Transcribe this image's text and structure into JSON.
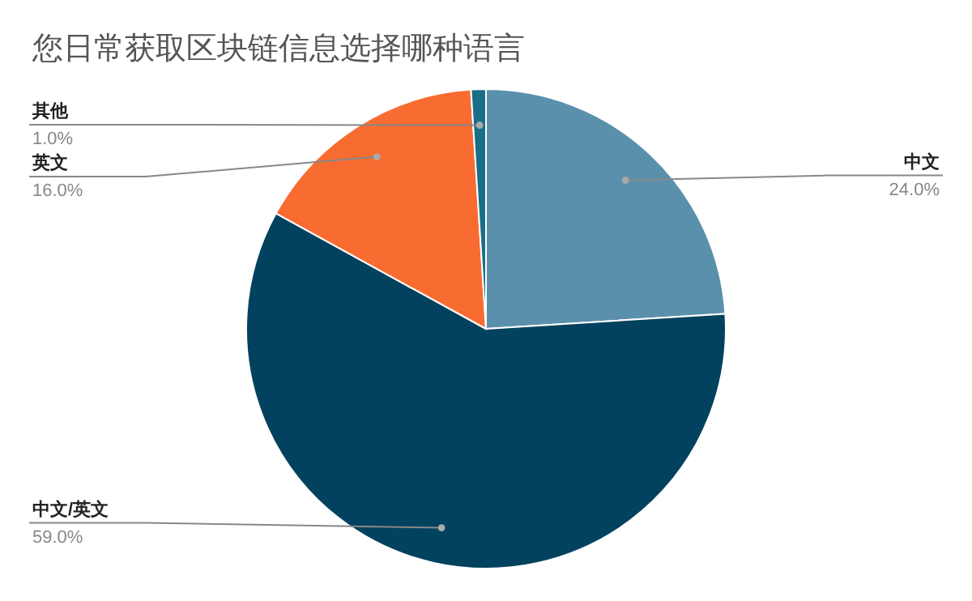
{
  "chart_data": {
    "type": "pie",
    "title": "您日常获取区块链信息选择哪种语言",
    "categories": [
      "中文",
      "中文/英文",
      "英文",
      "其他"
    ],
    "values": [
      24,
      59,
      16,
      1
    ],
    "value_labels": [
      "24.0%",
      "59.0%",
      "16.0%",
      "1.0%"
    ],
    "colors": [
      "#5b90ad",
      "#03425f",
      "#f86c32",
      "#1a6e88"
    ]
  }
}
